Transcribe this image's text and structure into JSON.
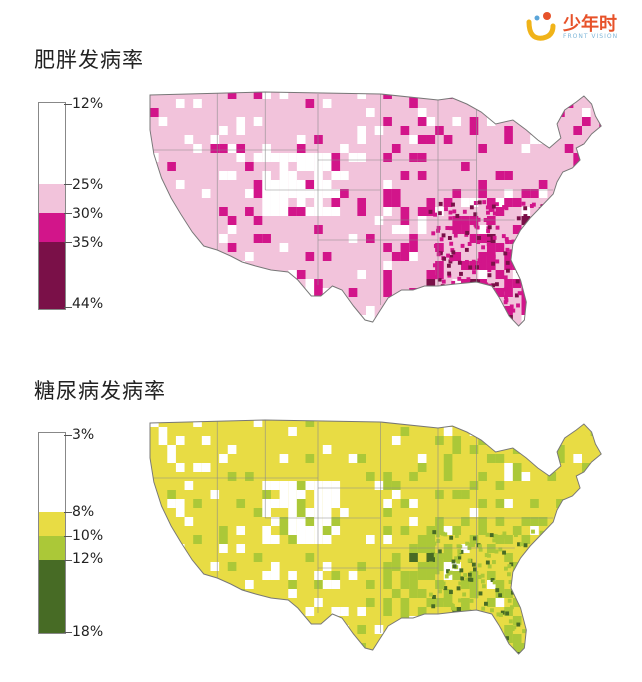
{
  "logo": {
    "text": "少年时",
    "subtext": "FRONT VISION"
  },
  "maps": [
    {
      "title": "肥胖发病率",
      "legend": [
        "12%",
        "25%",
        "30%",
        "35%",
        "44%"
      ],
      "colors": [
        "#ffffff",
        "#f2c3db",
        "#d2158a",
        "#7a1048"
      ]
    },
    {
      "title": "糖尿病发病率",
      "legend": [
        "3%",
        "8%",
        "10%",
        "12%",
        "18%"
      ],
      "colors": [
        "#ffffff",
        "#e8dc44",
        "#abc838",
        "#476b25"
      ]
    }
  ]
}
